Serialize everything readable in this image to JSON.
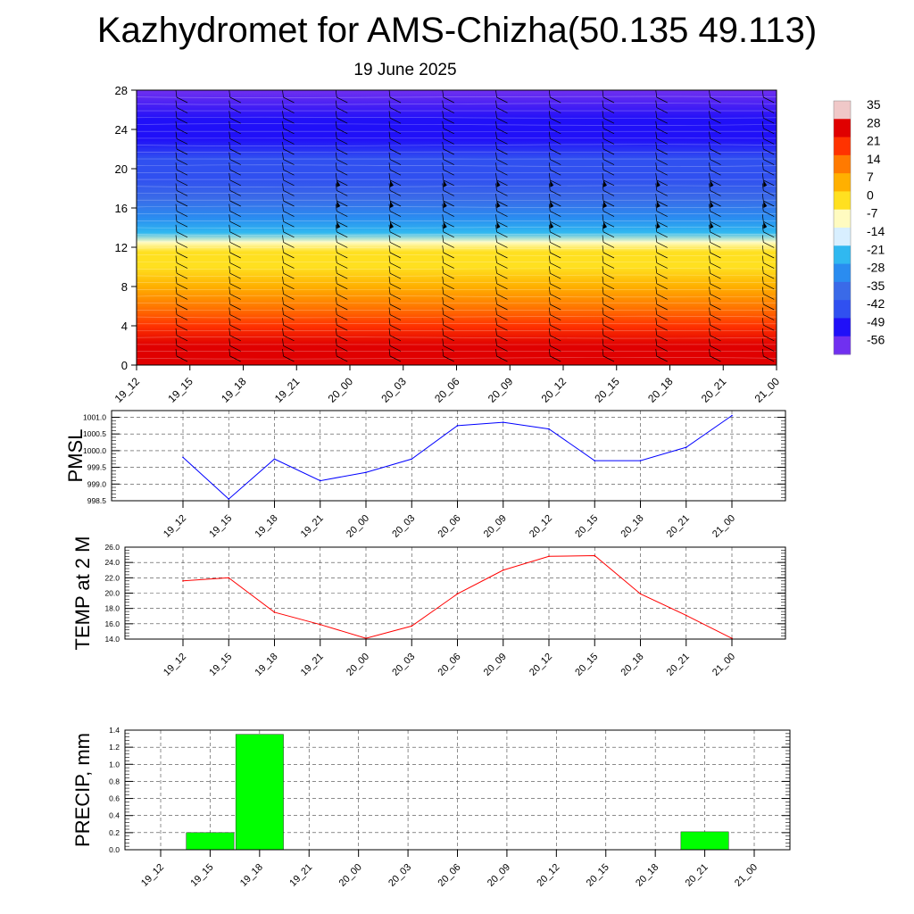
{
  "title": "Kazhydromet for AMS-Chizha(50.135 49.113)",
  "subtitle": "19 June 2025",
  "chart_data": [
    {
      "type": "heatmap",
      "title": "",
      "xlabel": "",
      "ylabel": "",
      "x_ticks": [
        "19_12",
        "19_15",
        "19_18",
        "19_21",
        "20_00",
        "20_03",
        "20_06",
        "20_09",
        "20_12",
        "20_15",
        "20_18",
        "20_21",
        "21_00"
      ],
      "y_ticks": [
        0,
        4,
        8,
        12,
        16,
        20,
        24,
        28
      ],
      "ylim": [
        0,
        28
      ],
      "colorbar_labels": [
        "35",
        "28",
        "21",
        "14",
        "7",
        "0",
        "-7",
        "-14",
        "-21",
        "-28",
        "-35",
        "-42",
        "-49",
        "-56"
      ],
      "colorbar_colors": [
        "#f0c8c8",
        "#e00000",
        "#ff3300",
        "#ff7a00",
        "#ffb000",
        "#ffe020",
        "#fffbc0",
        "#d8efff",
        "#30b8f0",
        "#2a8cf0",
        "#3a6ae8",
        "#3050f0",
        "#2010f8",
        "#7030f0"
      ],
      "profile_levels": [
        0,
        2,
        4,
        6,
        8,
        10,
        11.5,
        12.5,
        13.5,
        15,
        17,
        19,
        21,
        23,
        25,
        28
      ],
      "profile_values": [
        30,
        26,
        21,
        15,
        9,
        3,
        -2,
        -9,
        -18,
        -27,
        -36,
        -41,
        -43,
        -48,
        -52,
        -56
      ],
      "wind_barbs": "present",
      "grid": false
    },
    {
      "type": "line",
      "ylabel": "PMSL",
      "categories": [
        "19_12",
        "19_15",
        "19_18",
        "19_21",
        "20_00",
        "20_03",
        "20_06",
        "20_09",
        "20_12",
        "20_15",
        "20_18",
        "20_21",
        "21_00"
      ],
      "series": [
        {
          "values": [
            999.8,
            998.55,
            999.75,
            999.1,
            999.35,
            999.75,
            1000.75,
            1000.85,
            1000.65,
            999.7,
            999.7,
            1000.1,
            1001.05
          ],
          "color": "#0000ff"
        }
      ],
      "ylim": [
        998.5,
        1001.2
      ],
      "y_ticks": [
        "998.5",
        "999.0",
        "999.5",
        "1000.0",
        "1000.5",
        "1001.0"
      ],
      "grid": true
    },
    {
      "type": "line",
      "ylabel": "TEMP at 2 M",
      "categories": [
        "19_12",
        "19_15",
        "19_18",
        "19_21",
        "20_00",
        "20_03",
        "20_06",
        "20_09",
        "20_12",
        "20_15",
        "20_18",
        "20_21",
        "21_00"
      ],
      "series": [
        {
          "values": [
            21.6,
            22.0,
            17.5,
            15.9,
            14.1,
            15.7,
            19.9,
            23.0,
            24.8,
            24.9,
            19.9,
            17.1,
            14.1
          ],
          "color": "#ff0000"
        }
      ],
      "ylim": [
        14.0,
        26.0
      ],
      "y_ticks": [
        "14.0",
        "16.0",
        "18.0",
        "20.0",
        "22.0",
        "24.0",
        "26.0"
      ],
      "grid": true
    },
    {
      "type": "bar",
      "ylabel": "PRECIP, mm",
      "categories": [
        "19_12",
        "19_15",
        "19_18",
        "19_21",
        "20_00",
        "20_03",
        "20_06",
        "20_09",
        "20_12",
        "20_15",
        "20_18",
        "20_21",
        "21_00"
      ],
      "values": [
        0,
        0.2,
        1.35,
        0,
        0,
        0,
        0,
        0,
        0,
        0,
        0,
        0.21,
        0
      ],
      "color": "#00ff00",
      "ylim": [
        0,
        1.4
      ],
      "y_ticks": [
        "0.0",
        "0.2",
        "0.4",
        "0.6",
        "0.8",
        "1.0",
        "1.2",
        "1.4"
      ],
      "grid": true
    }
  ]
}
